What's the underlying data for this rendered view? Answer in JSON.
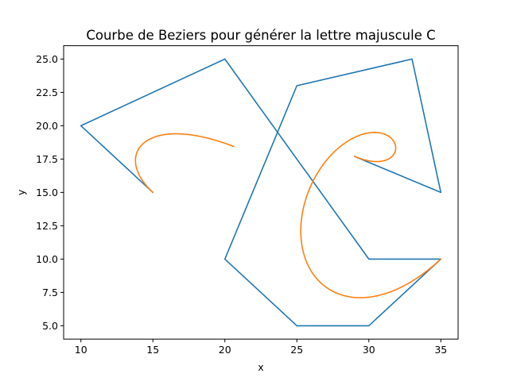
{
  "chart_data": {
    "type": "line",
    "title": "Courbe de Beziers pour générer la lettre majuscule C",
    "xlabel": "x",
    "ylabel": "y",
    "xlim": [
      8.8,
      36.2
    ],
    "ylim": [
      4.0,
      26.0
    ],
    "grid": false,
    "xticks": [
      {
        "value": 10,
        "label": "10"
      },
      {
        "value": 15,
        "label": "15"
      },
      {
        "value": 20,
        "label": "20"
      },
      {
        "value": 25,
        "label": "25"
      },
      {
        "value": 30,
        "label": "30"
      },
      {
        "value": 35,
        "label": "35"
      }
    ],
    "yticks": [
      {
        "value": 5.0,
        "label": "5.0"
      },
      {
        "value": 7.5,
        "label": "7.5"
      },
      {
        "value": 10.0,
        "label": "10.0"
      },
      {
        "value": 12.5,
        "label": "12.5"
      },
      {
        "value": 15.0,
        "label": "15.0"
      },
      {
        "value": 17.5,
        "label": "17.5"
      },
      {
        "value": 20.0,
        "label": "20.0"
      },
      {
        "value": 22.5,
        "label": "22.5"
      },
      {
        "value": 25.0,
        "label": "25.0"
      }
    ],
    "series": [
      {
        "name": "control_polygon_1",
        "color": "#1f77b4",
        "kind": "polyline",
        "x": [
          15,
          10,
          20,
          30,
          35
        ],
        "y": [
          15,
          20,
          25,
          10,
          10
        ]
      },
      {
        "name": "control_polygon_2",
        "color": "#1f77b4",
        "kind": "polyline",
        "x": [
          35,
          30,
          25,
          20,
          25,
          33,
          35,
          29
        ],
        "y": [
          10,
          5,
          5,
          10,
          23,
          25,
          15,
          17.7
        ]
      },
      {
        "name": "bezier_curve_1",
        "color": "#ff7f0e",
        "kind": "bezier",
        "control_x": [
          15,
          10,
          20,
          30,
          35
        ],
        "control_y": [
          15,
          20,
          25,
          10,
          10
        ],
        "t_end": 0.5
      },
      {
        "name": "bezier_curve_2",
        "color": "#ff7f0e",
        "kind": "bezier",
        "control_x": [
          35,
          30,
          25,
          20,
          25,
          33,
          35,
          29
        ],
        "control_y": [
          10,
          5,
          5,
          10,
          23,
          25,
          15,
          17.7
        ],
        "t_end": 1.0
      }
    ]
  }
}
